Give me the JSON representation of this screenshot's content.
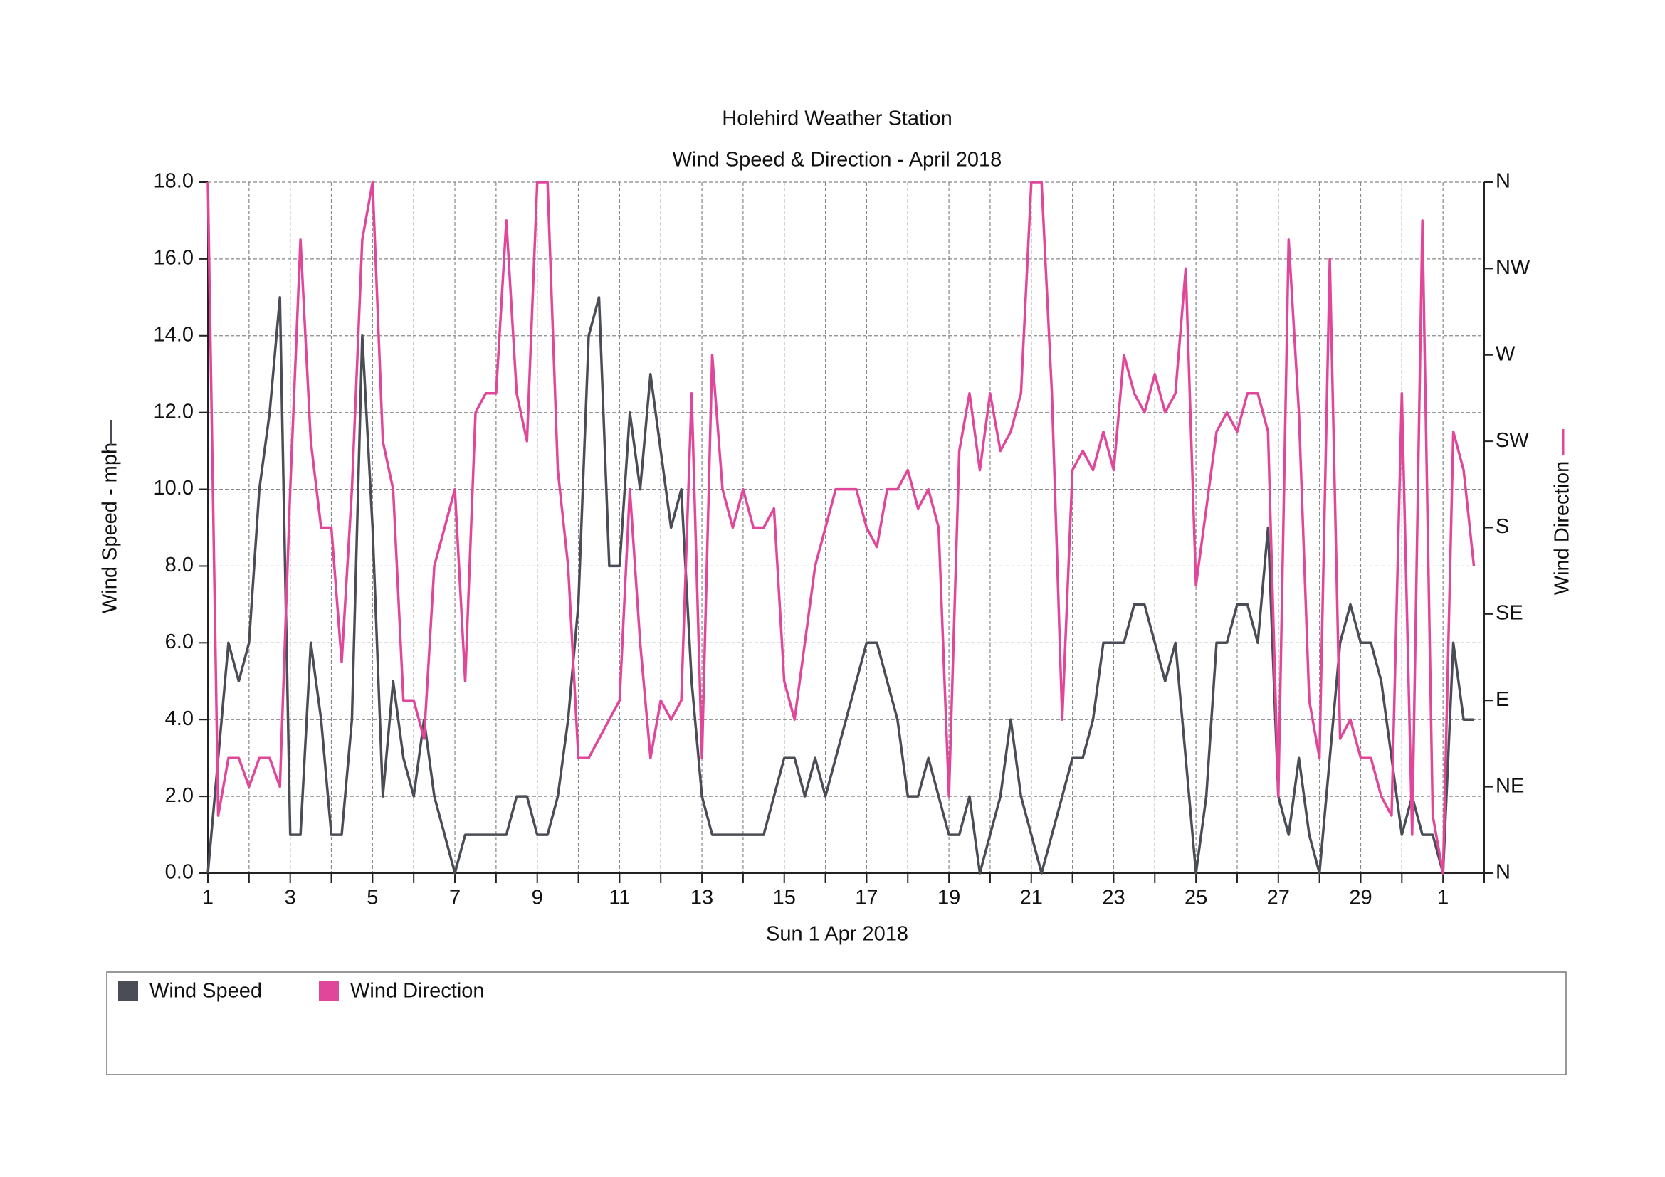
{
  "chart_data": {
    "type": "line",
    "title": "Holehird Weather Station",
    "subtitle": "Wind Speed & Direction - April 2018",
    "xlabel": "Sun 1 Apr 2018",
    "ylabel": "Wind Speed - mph",
    "y2label": "Wind Direction",
    "x": [
      1,
      1.25,
      1.5,
      1.75,
      2,
      2.25,
      2.5,
      2.75,
      3,
      3.25,
      3.5,
      3.75,
      4,
      4.25,
      4.5,
      4.75,
      5,
      5.25,
      5.5,
      5.75,
      6,
      6.25,
      6.5,
      6.75,
      7,
      7.25,
      7.5,
      7.75,
      8,
      8.25,
      8.5,
      8.75,
      9,
      9.25,
      9.5,
      9.75,
      10,
      10.25,
      10.5,
      10.75,
      11,
      11.25,
      11.5,
      11.75,
      12,
      12.25,
      12.5,
      12.75,
      13,
      13.25,
      13.5,
      13.75,
      14,
      14.25,
      14.5,
      14.75,
      15,
      15.25,
      15.5,
      15.75,
      16,
      16.25,
      16.5,
      16.75,
      17,
      17.25,
      17.5,
      17.75,
      18,
      18.25,
      18.5,
      18.75,
      19,
      19.25,
      19.5,
      19.75,
      20,
      20.25,
      20.5,
      20.75,
      21,
      21.25,
      21.5,
      21.75,
      22,
      22.25,
      22.5,
      22.75,
      23,
      23.25,
      23.5,
      23.75,
      24,
      24.25,
      24.5,
      24.75,
      25,
      25.25,
      25.5,
      25.75,
      26,
      26.25,
      26.5,
      26.75,
      27,
      27.25,
      27.5,
      27.75,
      28,
      28.25,
      28.5,
      28.75,
      29,
      29.25,
      29.5,
      29.75,
      30,
      30.25,
      30.5,
      30.75,
      31,
      31.25,
      31.5,
      31.75
    ],
    "series": [
      {
        "name": "Wind Speed",
        "color": "#4a4d55",
        "values": [
          0,
          3,
          6,
          5,
          6,
          10,
          12,
          15,
          1,
          1,
          6,
          4,
          1,
          1,
          4,
          14,
          9,
          2,
          5,
          3,
          2,
          4,
          2,
          1,
          0,
          1,
          1,
          1,
          1,
          1,
          2,
          2,
          1,
          1,
          2,
          4,
          7,
          14,
          15,
          8,
          8,
          12,
          10,
          13,
          11,
          9,
          10,
          5,
          2,
          1,
          1,
          1,
          1,
          1,
          1,
          2,
          3,
          3,
          2,
          3,
          2,
          3,
          4,
          5,
          6,
          6,
          5,
          4,
          2,
          2,
          3,
          2,
          1,
          1,
          2,
          0,
          1,
          2,
          4,
          2,
          1,
          0,
          1,
          2,
          3,
          3,
          4,
          6,
          6,
          6,
          7,
          7,
          6,
          5,
          6,
          3,
          0,
          2,
          6,
          6,
          7,
          7,
          6,
          9,
          2,
          1,
          3,
          1,
          0,
          3,
          6,
          7,
          6,
          6,
          5,
          3,
          1,
          2,
          1,
          1,
          0,
          6,
          4,
          4
        ]
      },
      {
        "name": "Wind Direction",
        "color": "#e0479a",
        "axis": "y2",
        "values": [
          360,
          30,
          60,
          60,
          45,
          60,
          60,
          45,
          200,
          330,
          225,
          180,
          180,
          110,
          200,
          330,
          360,
          225,
          200,
          90,
          90,
          70,
          160,
          180,
          200,
          100,
          240,
          250,
          250,
          340,
          250,
          225,
          360,
          360,
          210,
          160,
          60,
          60,
          70,
          80,
          90,
          200,
          120,
          60,
          90,
          80,
          90,
          250,
          60,
          270,
          200,
          180,
          200,
          180,
          180,
          190,
          100,
          80,
          120,
          160,
          180,
          200,
          200,
          200,
          180,
          170,
          200,
          200,
          210,
          190,
          200,
          180,
          40,
          220,
          250,
          210,
          250,
          220,
          230,
          250,
          360,
          360,
          250,
          80,
          210,
          220,
          210,
          230,
          210,
          270,
          250,
          240,
          260,
          240,
          250,
          315,
          150,
          190,
          230,
          240,
          230,
          250,
          250,
          230,
          40,
          330,
          240,
          90,
          60,
          320,
          70,
          80,
          60,
          60,
          40,
          30,
          250,
          20,
          340,
          30,
          0,
          230,
          210,
          160
        ]
      }
    ],
    "xlim": [
      1,
      32
    ],
    "xticks": [
      1,
      3,
      5,
      7,
      9,
      11,
      13,
      15,
      17,
      19,
      21,
      23,
      25,
      27,
      29,
      {
        "value": 31,
        "label": "1"
      }
    ],
    "xminorticks": [
      2,
      4,
      6,
      8,
      10,
      12,
      14,
      16,
      18,
      20,
      22,
      24,
      26,
      28,
      30,
      32
    ],
    "ylim": [
      0,
      18
    ],
    "yticks": [
      {
        "value": 0,
        "label": "0.0"
      },
      {
        "value": 2,
        "label": "2.0"
      },
      {
        "value": 4,
        "label": "4.0"
      },
      {
        "value": 6,
        "label": "6.0"
      },
      {
        "value": 8,
        "label": "8.0"
      },
      {
        "value": 10,
        "label": "10.0"
      },
      {
        "value": 12,
        "label": "12.0"
      },
      {
        "value": 14,
        "label": "14.0"
      },
      {
        "value": 16,
        "label": "16.0"
      },
      {
        "value": 18,
        "label": "18.0"
      }
    ],
    "y2lim": [
      0,
      360
    ],
    "y2ticks": [
      {
        "value": 0,
        "label": "N"
      },
      {
        "value": 45,
        "label": "NE"
      },
      {
        "value": 90,
        "label": "E"
      },
      {
        "value": 135,
        "label": "SE"
      },
      {
        "value": 180,
        "label": "S"
      },
      {
        "value": 225,
        "label": "SW"
      },
      {
        "value": 270,
        "label": "W"
      },
      {
        "value": 315,
        "label": "NW"
      },
      {
        "value": 360,
        "label": "N"
      }
    ],
    "grid": true,
    "legend": "bottom"
  }
}
